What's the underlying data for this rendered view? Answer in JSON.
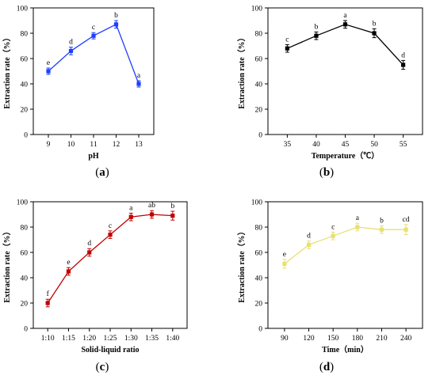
{
  "chart_data": [
    {
      "type": "line",
      "panel_label": "(a)",
      "xlabel": "pH",
      "ylabel": "Extraction rate（%）",
      "color": "#1f3fff",
      "marker": "square",
      "categories": [
        "9",
        "10",
        "11",
        "12",
        "13"
      ],
      "values": [
        50,
        66,
        78,
        87,
        40
      ],
      "errors": [
        2.5,
        3,
        2.5,
        3,
        2.5
      ],
      "significance": [
        "e",
        "d",
        "c",
        "b",
        "a"
      ],
      "ylim": [
        0,
        100
      ],
      "yticks": [
        "0",
        "20",
        "40",
        "60",
        "80",
        "100"
      ]
    },
    {
      "type": "line",
      "panel_label": "(b)",
      "xlabel": "Temperature（℃）",
      "ylabel": "Extraction rate（%）",
      "color": "#000000",
      "marker": "square",
      "categories": [
        "35",
        "40",
        "45",
        "50",
        "55"
      ],
      "values": [
        68,
        78,
        87,
        80,
        55
      ],
      "errors": [
        3,
        3,
        3,
        3.5,
        3.5
      ],
      "significance": [
        "c",
        "b",
        "a",
        "b",
        "d"
      ],
      "ylim": [
        0,
        100
      ],
      "yticks": [
        "0",
        "20",
        "40",
        "60",
        "80",
        "100"
      ]
    },
    {
      "type": "line",
      "panel_label": "(c)",
      "xlabel": "Solid-liquid ratio",
      "ylabel": "Extraction rate（%）",
      "color": "#c00000",
      "marker": "square",
      "categories": [
        "1:10",
        "1:15",
        "1:20",
        "1:25",
        "1:30",
        "1:35",
        "1:40"
      ],
      "values": [
        20,
        45,
        60,
        74,
        88,
        90,
        89
      ],
      "errors": [
        3,
        3,
        3,
        3,
        3,
        3,
        3.5
      ],
      "significance": [
        "f",
        "e",
        "d",
        "c",
        "a",
        "ab",
        "b"
      ],
      "ylim": [
        0,
        100
      ],
      "yticks": [
        "0",
        "20",
        "40",
        "60",
        "80",
        "100"
      ]
    },
    {
      "type": "line",
      "panel_label": "(d)",
      "xlabel": "Time（min）",
      "ylabel": "Extraction rate（%）",
      "color": "#e8e070",
      "marker": "square",
      "categories": [
        "90",
        "120",
        "150",
        "180",
        "210",
        "240"
      ],
      "values": [
        51,
        66,
        73,
        80,
        78,
        78
      ],
      "errors": [
        3.5,
        3,
        3,
        3,
        3,
        4
      ],
      "significance": [
        "e",
        "d",
        "c",
        "a",
        "b",
        "cd"
      ],
      "ylim": [
        0,
        100
      ],
      "yticks": [
        "0",
        "20",
        "40",
        "60",
        "80",
        "100"
      ]
    }
  ]
}
